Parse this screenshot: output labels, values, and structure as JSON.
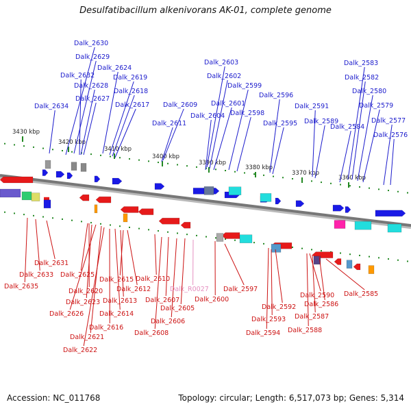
{
  "title": "Desulfatibacillum alkenivorans AK-01, complete genome",
  "footer": {
    "accession": "Accession: NC_011768",
    "topology": "Topology: circular; Length: 6,517,073 bp; Genes: 5,314"
  },
  "colors": {
    "background": "#ffffff",
    "backbone": "#777777",
    "top_label": "#1a1acc",
    "bottom_label": "#cc1111",
    "rna_label": "#e58fc0",
    "forward_gene": "#1a1ae6",
    "reverse_gene": "#e61a1a",
    "tick_minor": "#228822",
    "ruler_text": "#222222"
  },
  "ruler": [
    {
      "label": "3430 kbp"
    },
    {
      "label": "3420 kbp"
    },
    {
      "label": "3410 kbp"
    },
    {
      "label": "3400 kbp"
    },
    {
      "label": "3390 kbp"
    },
    {
      "label": "3380 kbp"
    },
    {
      "label": "3370 kbp"
    },
    {
      "label": "3360 kbp"
    }
  ],
  "top_labels": [
    {
      "text": "Dalk_2630"
    },
    {
      "text": "Dalk_2629"
    },
    {
      "text": "Dalk_2624"
    },
    {
      "text": "Dalk_2632"
    },
    {
      "text": "Dalk_2619"
    },
    {
      "text": "Dalk_2628"
    },
    {
      "text": "Dalk_2618"
    },
    {
      "text": "Dalk_2627"
    },
    {
      "text": "Dalk_2617"
    },
    {
      "text": "Dalk_2634"
    },
    {
      "text": "Dalk_2609"
    },
    {
      "text": "Dalk_2611"
    },
    {
      "text": "Dalk_2603"
    },
    {
      "text": "Dalk_2602"
    },
    {
      "text": "Dalk_2599"
    },
    {
      "text": "Dalk_2601"
    },
    {
      "text": "Dalk_2604"
    },
    {
      "text": "Dalk_2598"
    },
    {
      "text": "Dalk_2596"
    },
    {
      "text": "Dalk_2595"
    },
    {
      "text": "Dalk_2591"
    },
    {
      "text": "Dalk_2589"
    },
    {
      "text": "Dalk_2583"
    },
    {
      "text": "Dalk_2582"
    },
    {
      "text": "Dalk_2580"
    },
    {
      "text": "Dalk_2579"
    },
    {
      "text": "Dalk_2584"
    },
    {
      "text": "Dalk_2577"
    },
    {
      "text": "Dalk_2576"
    }
  ],
  "bottom_labels": [
    {
      "text": "Dalk_2631"
    },
    {
      "text": "Dalk_2633"
    },
    {
      "text": "Dalk_2635"
    },
    {
      "text": "Dalk_2625"
    },
    {
      "text": "Dalk_2620"
    },
    {
      "text": "Dalk_2623"
    },
    {
      "text": "Dalk_2626"
    },
    {
      "text": "Dalk_2621"
    },
    {
      "text": "Dalk_2622"
    },
    {
      "text": "Dalk_2615"
    },
    {
      "text": "Dalk_2612"
    },
    {
      "text": "Dalk_2613"
    },
    {
      "text": "Dalk_2614"
    },
    {
      "text": "Dalk_2616"
    },
    {
      "text": "Dalk_2610"
    },
    {
      "text": "Dalk_2607"
    },
    {
      "text": "Dalk_2606"
    },
    {
      "text": "Dalk_2608"
    },
    {
      "text": "Dalk_R0027"
    },
    {
      "text": "Dalk_2605"
    },
    {
      "text": "Dalk_2600"
    },
    {
      "text": "Dalk_2597"
    },
    {
      "text": "Dalk_2592"
    },
    {
      "text": "Dalk_2593"
    },
    {
      "text": "Dalk_2594"
    },
    {
      "text": "Dalk_2590"
    },
    {
      "text": "Dalk_2586"
    },
    {
      "text": "Dalk_2587"
    },
    {
      "text": "Dalk_2588"
    },
    {
      "text": "Dalk_2585"
    }
  ]
}
